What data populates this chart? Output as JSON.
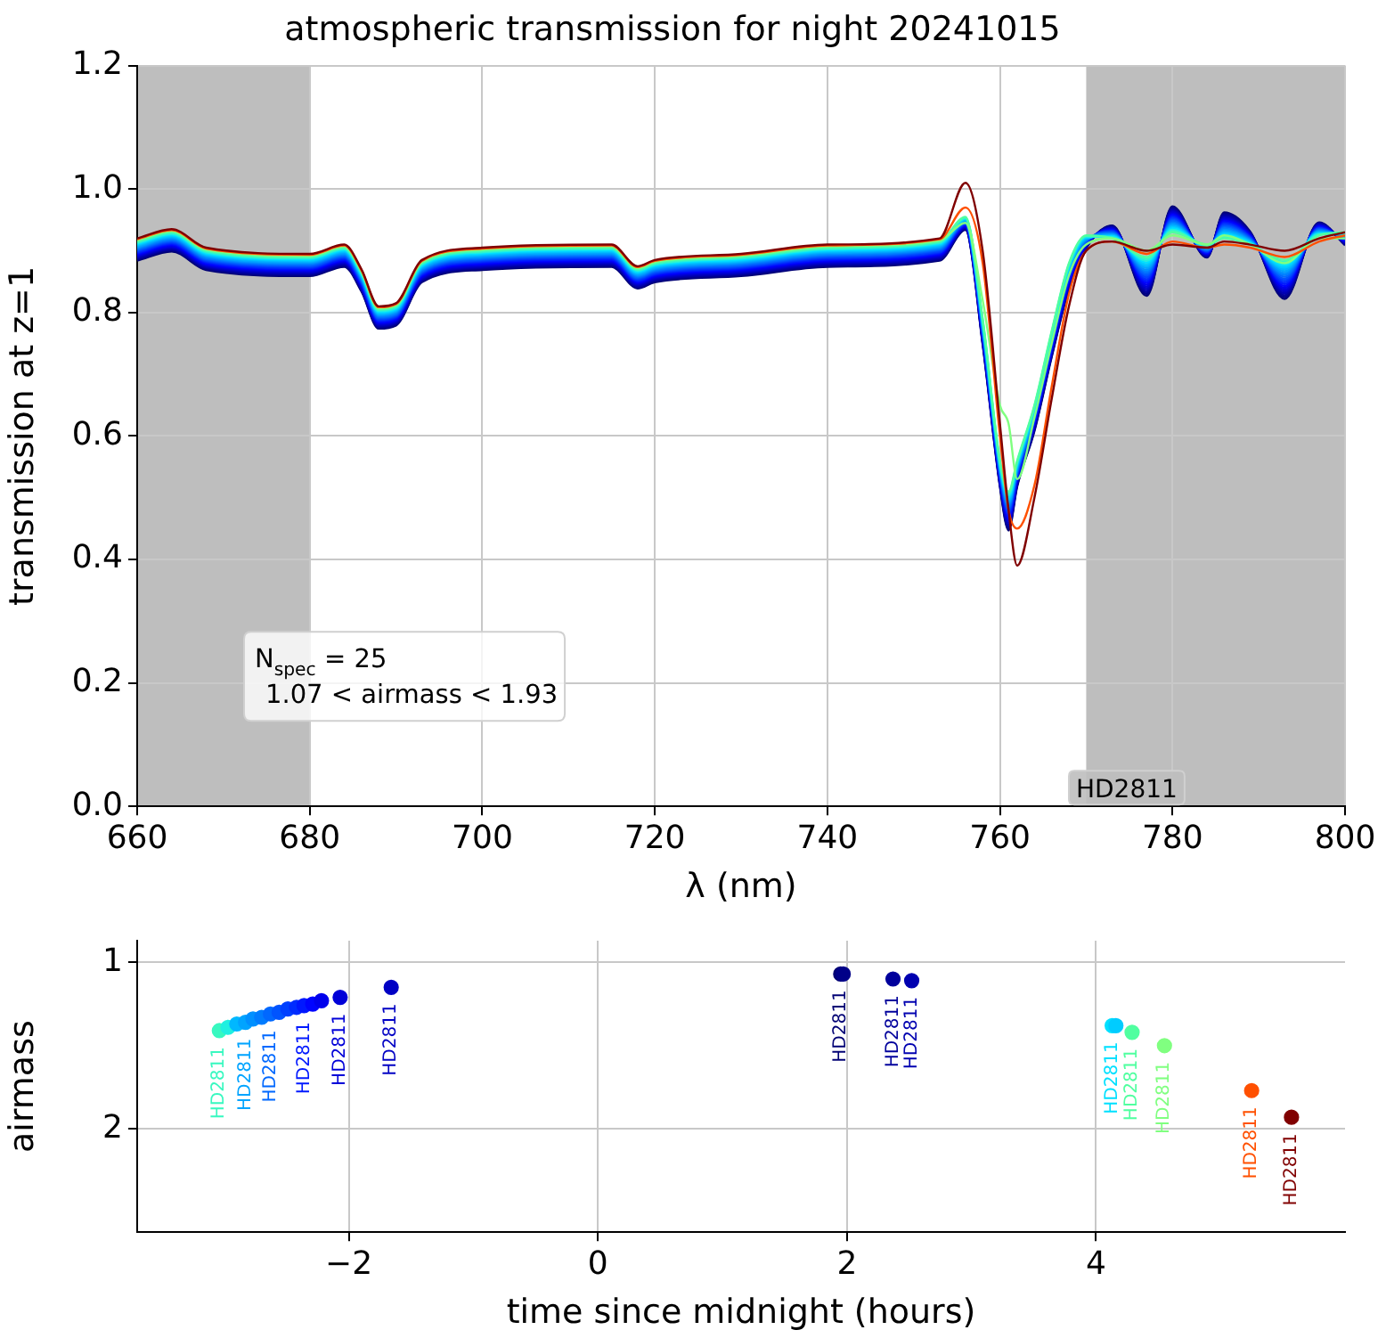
{
  "chart_data": [
    {
      "type": "line",
      "title": "atmospheric transmission for night 20241015",
      "xlabel": "λ (nm)",
      "ylabel": "transmission at z=1",
      "xlim": [
        660,
        800
      ],
      "xticks": [
        660,
        680,
        700,
        720,
        740,
        760,
        780,
        800
      ],
      "ylim": [
        0,
        1.2
      ],
      "yticks": [
        {
          "value": 0,
          "label": "0.0"
        },
        {
          "value": 0.2,
          "label": "0.2"
        },
        {
          "value": 0.4,
          "label": "0.4"
        },
        {
          "value": 0.6,
          "label": "0.6"
        },
        {
          "value": 0.8,
          "label": "0.8"
        },
        {
          "value": 1,
          "label": "1.0"
        },
        {
          "value": 1.2,
          "label": "1.2"
        }
      ],
      "grid": true,
      "legend": false,
      "marker": "none",
      "line_style": "solid",
      "bands": [
        {
          "axis": "x",
          "from": 660,
          "to": 680,
          "color": "#bebebe"
        },
        {
          "axis": "x",
          "from": 770,
          "to": 800,
          "color": "#bebebe"
        }
      ],
      "annotations": [
        "N$_{spec}$ = 25",
        "1.07 < airmass < 1.93",
        "HD2811"
      ],
      "x": [
        660,
        664,
        668,
        680,
        684,
        686,
        688,
        690,
        693,
        700,
        715,
        718,
        720,
        730,
        740,
        753,
        756,
        758,
        760,
        761,
        762,
        764,
        766,
        768,
        770,
        773,
        777,
        780,
        784,
        786,
        789,
        793,
        797,
        800
      ],
      "series": [
        {
          "color": "#800000",
          "values": [
            0.92,
            0.935,
            0.905,
            0.895,
            0.91,
            0.87,
            0.81,
            0.815,
            0.885,
            0.905,
            0.91,
            0.875,
            0.885,
            0.895,
            0.91,
            0.92,
            1.01,
            0.9,
            0.62,
            0.48,
            0.39,
            0.5,
            0.66,
            0.81,
            0.9,
            0.915,
            0.9,
            0.91,
            0.905,
            0.915,
            0.91,
            0.9,
            0.92,
            0.93
          ]
        },
        {
          "color": "#ff5000",
          "values": [
            0.9185,
            0.9335,
            0.9035,
            0.8935,
            0.9085,
            0.8685,
            0.8085,
            0.8135,
            0.8835,
            0.9035,
            0.9085,
            0.8735,
            0.8835,
            0.8935,
            0.9085,
            0.9185,
            0.97,
            0.88,
            0.6,
            0.48,
            0.45,
            0.52,
            0.68,
            0.83,
            0.9,
            0.915,
            0.895,
            0.915,
            0.905,
            0.91,
            0.905,
            0.89,
            0.915,
            0.925
          ]
        },
        {
          "color": "#80ff80",
          "values": [
            0.917,
            0.932,
            0.902,
            0.892,
            0.907,
            0.867,
            0.807,
            0.812,
            0.882,
            0.902,
            0.907,
            0.872,
            0.882,
            0.892,
            0.907,
            0.917,
            0.945,
            0.82,
            0.65,
            0.62,
            0.53,
            0.63,
            0.75,
            0.86,
            0.91,
            0.92,
            0.9,
            0.925,
            0.91,
            0.925,
            0.91,
            0.88,
            0.92,
            0.92
          ]
        },
        {
          "color": "#50ffa0",
          "values": [
            0.9155,
            0.9305,
            0.9005,
            0.8905,
            0.9055,
            0.8655,
            0.8055,
            0.8105,
            0.8805,
            0.9005,
            0.9055,
            0.8705,
            0.8805,
            0.8905,
            0.9055,
            0.9155,
            0.955,
            0.79,
            0.56,
            0.51,
            0.56,
            0.65,
            0.77,
            0.88,
            0.925,
            0.92,
            0.89,
            0.93,
            0.91,
            0.92,
            0.91,
            0.885,
            0.925,
            0.93
          ]
        },
        {
          "color": "#38f8c0",
          "values": [
            0.914,
            0.929,
            0.899,
            0.889,
            0.904,
            0.864,
            0.804,
            0.809,
            0.879,
            0.899,
            0.904,
            0.869,
            0.879,
            0.889,
            0.904,
            0.914,
            0.954,
            0.788,
            0.558,
            0.507,
            0.558,
            0.648,
            0.768,
            0.878,
            0.924,
            0.921,
            0.887,
            0.932,
            0.909,
            0.922,
            0.911,
            0.882,
            0.926,
            0.929
          ]
        },
        {
          "color": "#20f0e0",
          "values": [
            0.9125,
            0.9275,
            0.8975,
            0.8875,
            0.9025,
            0.8625,
            0.8025,
            0.8075,
            0.8775,
            0.8975,
            0.9025,
            0.8675,
            0.8775,
            0.8875,
            0.9025,
            0.9125,
            0.953,
            0.786,
            0.556,
            0.504,
            0.556,
            0.646,
            0.766,
            0.876,
            0.923,
            0.922,
            0.884,
            0.934,
            0.908,
            0.924,
            0.912,
            0.879,
            0.927,
            0.928
          ]
        },
        {
          "color": "#00e0ff",
          "values": [
            0.911,
            0.926,
            0.896,
            0.886,
            0.901,
            0.861,
            0.801,
            0.806,
            0.876,
            0.896,
            0.901,
            0.866,
            0.876,
            0.886,
            0.901,
            0.911,
            0.952,
            0.784,
            0.554,
            0.501,
            0.554,
            0.644,
            0.764,
            0.874,
            0.922,
            0.923,
            0.881,
            0.936,
            0.907,
            0.926,
            0.913,
            0.876,
            0.928,
            0.927
          ]
        },
        {
          "color": "#00ccff",
          "values": [
            0.9095,
            0.9245,
            0.8945,
            0.8845,
            0.8995,
            0.8595,
            0.7995,
            0.8045,
            0.8745,
            0.8945,
            0.8995,
            0.8645,
            0.8745,
            0.8845,
            0.8995,
            0.9095,
            0.951,
            0.782,
            0.552,
            0.498,
            0.552,
            0.642,
            0.762,
            0.872,
            0.921,
            0.924,
            0.878,
            0.938,
            0.906,
            0.928,
            0.914,
            0.873,
            0.929,
            0.926
          ]
        },
        {
          "color": "#00b8ff",
          "values": [
            0.908,
            0.923,
            0.893,
            0.883,
            0.898,
            0.858,
            0.798,
            0.803,
            0.873,
            0.893,
            0.898,
            0.863,
            0.873,
            0.883,
            0.898,
            0.908,
            0.95,
            0.78,
            0.55,
            0.495,
            0.55,
            0.64,
            0.76,
            0.87,
            0.92,
            0.925,
            0.875,
            0.94,
            0.905,
            0.93,
            0.915,
            0.87,
            0.93,
            0.925
          ]
        },
        {
          "color": "#00a4ff",
          "values": [
            0.9065,
            0.9215,
            0.8915,
            0.8815,
            0.8965,
            0.8565,
            0.7965,
            0.8015,
            0.8715,
            0.8915,
            0.8965,
            0.8615,
            0.8715,
            0.8815,
            0.8965,
            0.9065,
            0.949,
            0.778,
            0.548,
            0.492,
            0.548,
            0.638,
            0.758,
            0.868,
            0.919,
            0.926,
            0.872,
            0.942,
            0.904,
            0.932,
            0.916,
            0.867,
            0.931,
            0.924
          ]
        },
        {
          "color": "#0090ff",
          "values": [
            0.905,
            0.92,
            0.89,
            0.88,
            0.895,
            0.855,
            0.795,
            0.8,
            0.87,
            0.89,
            0.895,
            0.86,
            0.87,
            0.88,
            0.895,
            0.905,
            0.948,
            0.776,
            0.546,
            0.489,
            0.546,
            0.636,
            0.756,
            0.866,
            0.918,
            0.927,
            0.869,
            0.944,
            0.903,
            0.934,
            0.917,
            0.864,
            0.932,
            0.923
          ]
        },
        {
          "color": "#007cff",
          "values": [
            0.9035,
            0.9185,
            0.8885,
            0.8785,
            0.8935,
            0.8535,
            0.7935,
            0.7985,
            0.8685,
            0.8885,
            0.8935,
            0.8585,
            0.8685,
            0.8785,
            0.8935,
            0.9035,
            0.947,
            0.774,
            0.544,
            0.486,
            0.544,
            0.634,
            0.754,
            0.864,
            0.917,
            0.928,
            0.866,
            0.946,
            0.902,
            0.936,
            0.918,
            0.861,
            0.933,
            0.922
          ]
        },
        {
          "color": "#0068ff",
          "values": [
            0.902,
            0.917,
            0.887,
            0.877,
            0.892,
            0.852,
            0.792,
            0.797,
            0.867,
            0.887,
            0.892,
            0.857,
            0.867,
            0.877,
            0.892,
            0.902,
            0.946,
            0.772,
            0.542,
            0.483,
            0.542,
            0.632,
            0.752,
            0.862,
            0.916,
            0.929,
            0.863,
            0.948,
            0.901,
            0.938,
            0.919,
            0.858,
            0.934,
            0.921
          ]
        },
        {
          "color": "#0054ff",
          "values": [
            0.9005,
            0.9155,
            0.8855,
            0.8755,
            0.8905,
            0.8505,
            0.7905,
            0.7955,
            0.8655,
            0.8855,
            0.8905,
            0.8555,
            0.8655,
            0.8755,
            0.8905,
            0.9005,
            0.945,
            0.77,
            0.54,
            0.48,
            0.54,
            0.63,
            0.75,
            0.86,
            0.915,
            0.93,
            0.86,
            0.95,
            0.9,
            0.94,
            0.92,
            0.855,
            0.935,
            0.92
          ]
        },
        {
          "color": "#0040ff",
          "values": [
            0.899,
            0.914,
            0.884,
            0.874,
            0.889,
            0.849,
            0.789,
            0.794,
            0.864,
            0.884,
            0.889,
            0.854,
            0.864,
            0.874,
            0.889,
            0.899,
            0.944,
            0.768,
            0.538,
            0.477,
            0.538,
            0.628,
            0.748,
            0.858,
            0.914,
            0.931,
            0.857,
            0.952,
            0.899,
            0.942,
            0.921,
            0.852,
            0.936,
            0.919
          ]
        },
        {
          "color": "#002cff",
          "values": [
            0.8975,
            0.9125,
            0.8825,
            0.8725,
            0.8875,
            0.8475,
            0.7875,
            0.7925,
            0.8625,
            0.8825,
            0.8875,
            0.8525,
            0.8625,
            0.8725,
            0.8875,
            0.8975,
            0.943,
            0.766,
            0.536,
            0.474,
            0.536,
            0.626,
            0.746,
            0.856,
            0.913,
            0.932,
            0.854,
            0.954,
            0.898,
            0.944,
            0.922,
            0.849,
            0.937,
            0.918
          ]
        },
        {
          "color": "#0018ff",
          "values": [
            0.896,
            0.911,
            0.881,
            0.871,
            0.886,
            0.846,
            0.786,
            0.791,
            0.861,
            0.881,
            0.886,
            0.851,
            0.861,
            0.871,
            0.886,
            0.896,
            0.942,
            0.764,
            0.534,
            0.471,
            0.534,
            0.624,
            0.744,
            0.854,
            0.912,
            0.933,
            0.851,
            0.956,
            0.897,
            0.946,
            0.923,
            0.846,
            0.938,
            0.917
          ]
        },
        {
          "color": "#0004ff",
          "values": [
            0.8945,
            0.9095,
            0.8795,
            0.8695,
            0.8845,
            0.8445,
            0.7845,
            0.7895,
            0.8595,
            0.8795,
            0.8845,
            0.8495,
            0.8595,
            0.8695,
            0.8845,
            0.8945,
            0.941,
            0.762,
            0.532,
            0.468,
            0.532,
            0.622,
            0.742,
            0.852,
            0.911,
            0.934,
            0.848,
            0.958,
            0.896,
            0.948,
            0.924,
            0.843,
            0.939,
            0.916
          ]
        },
        {
          "color": "#0000ec",
          "values": [
            0.893,
            0.908,
            0.878,
            0.868,
            0.883,
            0.843,
            0.783,
            0.788,
            0.858,
            0.878,
            0.883,
            0.848,
            0.858,
            0.868,
            0.883,
            0.893,
            0.94,
            0.76,
            0.53,
            0.465,
            0.53,
            0.62,
            0.74,
            0.85,
            0.91,
            0.935,
            0.845,
            0.96,
            0.895,
            0.95,
            0.925,
            0.84,
            0.94,
            0.915
          ]
        },
        {
          "color": "#0000d8",
          "values": [
            0.8915,
            0.9065,
            0.8765,
            0.8665,
            0.8815,
            0.8415,
            0.7815,
            0.7865,
            0.8565,
            0.8765,
            0.8815,
            0.8465,
            0.8565,
            0.8665,
            0.8815,
            0.8915,
            0.939,
            0.758,
            0.528,
            0.462,
            0.528,
            0.618,
            0.738,
            0.848,
            0.909,
            0.936,
            0.842,
            0.962,
            0.894,
            0.952,
            0.926,
            0.837,
            0.941,
            0.914
          ]
        },
        {
          "color": "#0000c4",
          "values": [
            0.89,
            0.905,
            0.875,
            0.865,
            0.88,
            0.84,
            0.78,
            0.785,
            0.855,
            0.875,
            0.88,
            0.845,
            0.855,
            0.865,
            0.88,
            0.89,
            0.938,
            0.756,
            0.526,
            0.459,
            0.526,
            0.616,
            0.736,
            0.846,
            0.908,
            0.937,
            0.839,
            0.964,
            0.893,
            0.954,
            0.927,
            0.834,
            0.942,
            0.913
          ]
        },
        {
          "color": "#0000b0",
          "values": [
            0.8885,
            0.9035,
            0.8735,
            0.8635,
            0.8785,
            0.8385,
            0.7785,
            0.7835,
            0.8535,
            0.8735,
            0.8785,
            0.8435,
            0.8535,
            0.8635,
            0.8785,
            0.8885,
            0.937,
            0.754,
            0.524,
            0.456,
            0.524,
            0.614,
            0.734,
            0.844,
            0.907,
            0.938,
            0.836,
            0.966,
            0.892,
            0.956,
            0.928,
            0.831,
            0.943,
            0.912
          ]
        },
        {
          "color": "#00009c",
          "values": [
            0.887,
            0.902,
            0.872,
            0.862,
            0.877,
            0.837,
            0.777,
            0.782,
            0.852,
            0.872,
            0.877,
            0.842,
            0.852,
            0.862,
            0.877,
            0.887,
            0.936,
            0.752,
            0.522,
            0.453,
            0.522,
            0.612,
            0.732,
            0.842,
            0.906,
            0.939,
            0.833,
            0.968,
            0.891,
            0.958,
            0.929,
            0.828,
            0.944,
            0.911
          ]
        },
        {
          "color": "#000088",
          "values": [
            0.8855,
            0.9005,
            0.8705,
            0.8605,
            0.8755,
            0.8355,
            0.7755,
            0.7805,
            0.8505,
            0.8705,
            0.8755,
            0.8405,
            0.8505,
            0.8605,
            0.8755,
            0.8855,
            0.935,
            0.75,
            0.52,
            0.45,
            0.52,
            0.61,
            0.73,
            0.84,
            0.905,
            0.94,
            0.83,
            0.97,
            0.89,
            0.96,
            0.93,
            0.825,
            0.945,
            0.91
          ]
        },
        {
          "color": "#000074",
          "values": [
            0.884,
            0.899,
            0.869,
            0.859,
            0.874,
            0.834,
            0.774,
            0.779,
            0.849,
            0.869,
            0.874,
            0.839,
            0.849,
            0.859,
            0.874,
            0.884,
            0.934,
            0.748,
            0.518,
            0.447,
            0.518,
            0.608,
            0.728,
            0.838,
            0.904,
            0.941,
            0.827,
            0.972,
            0.889,
            0.962,
            0.931,
            0.822,
            0.946,
            0.909
          ]
        }
      ]
    },
    {
      "type": "scatter",
      "xlabel": "time since midnight (hours)",
      "ylabel": "airmass",
      "xlim": [
        -3.7,
        6.0
      ],
      "xticks": [
        {
          "value": -2,
          "label": "−2"
        },
        0,
        2,
        4
      ],
      "ylim": [
        2.62,
        0.87
      ],
      "yticks": [
        1,
        2
      ],
      "grid": true,
      "legend": false,
      "marker": "circle",
      "x": [
        -3.04,
        -2.97,
        -2.9,
        -2.83,
        -2.77,
        -2.7,
        -2.63,
        -2.56,
        -2.49,
        -2.42,
        -2.36,
        -2.29,
        -2.22,
        -2.07,
        -1.66,
        1.95,
        1.97,
        2.37,
        2.52,
        4.13,
        4.16,
        4.29,
        4.55,
        5.25,
        5.57
      ],
      "values": [
        1.41,
        1.39,
        1.37,
        1.36,
        1.34,
        1.33,
        1.31,
        1.3,
        1.28,
        1.27,
        1.26,
        1.25,
        1.23,
        1.21,
        1.15,
        1.07,
        1.07,
        1.1,
        1.11,
        1.38,
        1.38,
        1.42,
        1.5,
        1.77,
        1.93
      ],
      "colors": [
        "#38f8c0",
        "#20f0e0",
        "#00b8ff",
        "#00a4ff",
        "#0090ff",
        "#007cff",
        "#0068ff",
        "#0054ff",
        "#0040ff",
        "#002cff",
        "#0018ff",
        "#0004ff",
        "#0000ec",
        "#0000d8",
        "#0000c4",
        "#000074",
        "#000088",
        "#00009c",
        "#0000b0",
        "#00e0ff",
        "#00ccff",
        "#50ffa0",
        "#80ff80",
        "#ff5000",
        "#800000"
      ],
      "value_labels": [
        "HD2811",
        null,
        null,
        "HD2811",
        null,
        null,
        "HD2811",
        null,
        null,
        null,
        "HD2811",
        null,
        null,
        "HD2811",
        "HD2811",
        "HD2811",
        null,
        "HD2811",
        "HD2811",
        "HD2811",
        null,
        "HD2811",
        "HD2811",
        "HD2811",
        "HD2811"
      ]
    }
  ]
}
